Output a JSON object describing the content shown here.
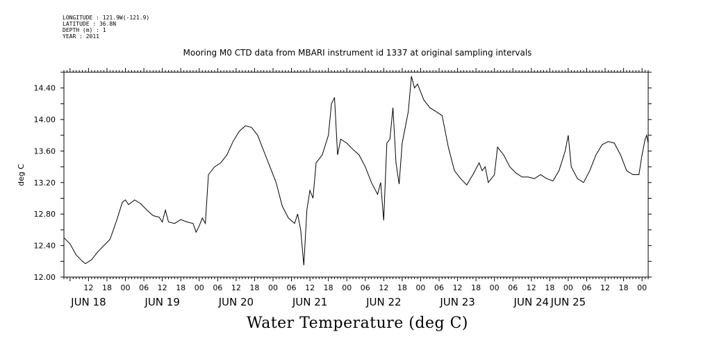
{
  "meta": {
    "longitude": "LONGITUDE : 121.9W(-121.9)",
    "latitude": "LATITUDE : 36.8N",
    "depth": "DEPTH (m) : 1",
    "year": "YEAR : 2011"
  },
  "chart_data": {
    "type": "line",
    "title": "Mooring M0 CTD data from MBARI instrument id 1337 at original sampling intervals",
    "xlabel": "Water Temperature (deg C)",
    "ylabel": "deg C",
    "ylim": [
      12.0,
      14.6
    ],
    "yticks": [
      12.0,
      12.4,
      12.8,
      13.2,
      13.6,
      14.0,
      14.4
    ],
    "ytick_labels": [
      "12.00",
      "12.40",
      "12.80",
      "13.20",
      "13.60",
      "14.00",
      "14.40"
    ],
    "xlim": [
      "2011-06-17T04:00",
      "2011-06-25T02:00"
    ],
    "hour_ticks": [
      {
        "t": "2011-06-17T12:00",
        "label": "12"
      },
      {
        "t": "2011-06-17T18:00",
        "label": "18"
      },
      {
        "t": "2011-06-18T00:00",
        "label": "00"
      },
      {
        "t": "2011-06-18T06:00",
        "label": "06"
      },
      {
        "t": "2011-06-18T12:00",
        "label": "12"
      },
      {
        "t": "2011-06-18T18:00",
        "label": "18"
      },
      {
        "t": "2011-06-19T00:00",
        "label": "00"
      },
      {
        "t": "2011-06-19T06:00",
        "label": "06"
      },
      {
        "t": "2011-06-19T12:00",
        "label": "12"
      },
      {
        "t": "2011-06-19T18:00",
        "label": "18"
      },
      {
        "t": "2011-06-20T00:00",
        "label": "00"
      },
      {
        "t": "2011-06-20T06:00",
        "label": "06"
      },
      {
        "t": "2011-06-20T12:00",
        "label": "12"
      },
      {
        "t": "2011-06-20T18:00",
        "label": "18"
      },
      {
        "t": "2011-06-21T00:00",
        "label": "00"
      },
      {
        "t": "2011-06-21T06:00",
        "label": "06"
      },
      {
        "t": "2011-06-21T12:00",
        "label": "12"
      },
      {
        "t": "2011-06-21T18:00",
        "label": "18"
      },
      {
        "t": "2011-06-22T00:00",
        "label": "00"
      },
      {
        "t": "2011-06-22T06:00",
        "label": "06"
      },
      {
        "t": "2011-06-22T12:00",
        "label": "12"
      },
      {
        "t": "2011-06-22T18:00",
        "label": "18"
      },
      {
        "t": "2011-06-23T00:00",
        "label": "00"
      },
      {
        "t": "2011-06-23T06:00",
        "label": "06"
      },
      {
        "t": "2011-06-23T12:00",
        "label": "12"
      },
      {
        "t": "2011-06-23T18:00",
        "label": "18"
      },
      {
        "t": "2011-06-24T00:00",
        "label": "00"
      },
      {
        "t": "2011-06-24T06:00",
        "label": "06"
      },
      {
        "t": "2011-06-24T12:00",
        "label": "12"
      },
      {
        "t": "2011-06-24T18:00",
        "label": "18"
      },
      {
        "t": "2011-06-25T00:00",
        "label": "00"
      }
    ],
    "date_labels": [
      {
        "t": "2011-06-17T12:00",
        "label": "JUN 18"
      },
      {
        "t": "2011-06-18T12:00",
        "label": "JUN 19"
      },
      {
        "t": "2011-06-19T12:00",
        "label": "JUN 20"
      },
      {
        "t": "2011-06-20T12:00",
        "label": "JUN 21"
      },
      {
        "t": "2011-06-21T12:00",
        "label": "JUN 22"
      },
      {
        "t": "2011-06-22T12:00",
        "label": "JUN 23"
      },
      {
        "t": "2011-06-23T12:00",
        "label": "JUN 24"
      },
      {
        "t": "2011-06-24T00:00",
        "label": "JUN 25"
      }
    ],
    "series": [
      {
        "points": [
          [
            "2011-06-17T04:00",
            12.5
          ],
          [
            "2011-06-17T06:00",
            12.42
          ],
          [
            "2011-06-17T08:00",
            12.28
          ],
          [
            "2011-06-17T10:00",
            12.2
          ],
          [
            "2011-06-17T11:00",
            12.17
          ],
          [
            "2011-06-17T13:00",
            12.22
          ],
          [
            "2011-06-17T15:00",
            12.32
          ],
          [
            "2011-06-17T17:00",
            12.4
          ],
          [
            "2011-06-17T19:00",
            12.48
          ],
          [
            "2011-06-17T21:00",
            12.7
          ],
          [
            "2011-06-17T23:00",
            12.95
          ],
          [
            "2011-06-18T00:00",
            12.98
          ],
          [
            "2011-06-18T01:00",
            12.92
          ],
          [
            "2011-06-18T03:00",
            12.98
          ],
          [
            "2011-06-18T05:00",
            12.93
          ],
          [
            "2011-06-18T07:00",
            12.85
          ],
          [
            "2011-06-18T09:00",
            12.78
          ],
          [
            "2011-06-18T11:00",
            12.76
          ],
          [
            "2011-06-18T12:00",
            12.7
          ],
          [
            "2011-06-18T13:00",
            12.85
          ],
          [
            "2011-06-18T14:00",
            12.7
          ],
          [
            "2011-06-18T16:00",
            12.68
          ],
          [
            "2011-06-18T18:00",
            12.73
          ],
          [
            "2011-06-18T20:00",
            12.7
          ],
          [
            "2011-06-18T22:00",
            12.68
          ],
          [
            "2011-06-18T23:00",
            12.57
          ],
          [
            "2011-06-19T00:00",
            12.65
          ],
          [
            "2011-06-19T01:00",
            12.75
          ],
          [
            "2011-06-19T02:00",
            12.68
          ],
          [
            "2011-06-19T03:00",
            13.3
          ],
          [
            "2011-06-19T05:00",
            13.4
          ],
          [
            "2011-06-19T07:00",
            13.45
          ],
          [
            "2011-06-19T09:00",
            13.55
          ],
          [
            "2011-06-19T11:00",
            13.72
          ],
          [
            "2011-06-19T13:00",
            13.85
          ],
          [
            "2011-06-19T15:00",
            13.92
          ],
          [
            "2011-06-19T17:00",
            13.9
          ],
          [
            "2011-06-19T19:00",
            13.8
          ],
          [
            "2011-06-19T21:00",
            13.6
          ],
          [
            "2011-06-19T23:00",
            13.4
          ],
          [
            "2011-06-20T01:00",
            13.2
          ],
          [
            "2011-06-20T03:00",
            12.9
          ],
          [
            "2011-06-20T05:00",
            12.75
          ],
          [
            "2011-06-20T07:00",
            12.68
          ],
          [
            "2011-06-20T08:00",
            12.8
          ],
          [
            "2011-06-20T09:00",
            12.6
          ],
          [
            "2011-06-20T10:00",
            12.15
          ],
          [
            "2011-06-20T11:00",
            12.85
          ],
          [
            "2011-06-20T12:00",
            13.1
          ],
          [
            "2011-06-20T13:00",
            13.0
          ],
          [
            "2011-06-20T14:00",
            13.45
          ],
          [
            "2011-06-20T16:00",
            13.55
          ],
          [
            "2011-06-20T18:00",
            13.8
          ],
          [
            "2011-06-20T19:00",
            14.2
          ],
          [
            "2011-06-20T20:00",
            14.28
          ],
          [
            "2011-06-20T21:00",
            13.55
          ],
          [
            "2011-06-20T22:00",
            13.75
          ],
          [
            "2011-06-21T00:00",
            13.7
          ],
          [
            "2011-06-21T02:00",
            13.62
          ],
          [
            "2011-06-21T04:00",
            13.55
          ],
          [
            "2011-06-21T06:00",
            13.4
          ],
          [
            "2011-06-21T08:00",
            13.2
          ],
          [
            "2011-06-21T10:00",
            13.05
          ],
          [
            "2011-06-21T11:00",
            13.2
          ],
          [
            "2011-06-21T12:00",
            12.72
          ],
          [
            "2011-06-21T13:00",
            13.7
          ],
          [
            "2011-06-21T14:00",
            13.75
          ],
          [
            "2011-06-21T15:00",
            14.15
          ],
          [
            "2011-06-21T16:00",
            13.45
          ],
          [
            "2011-06-21T17:00",
            13.18
          ],
          [
            "2011-06-21T18:00",
            13.7
          ],
          [
            "2011-06-21T20:00",
            14.1
          ],
          [
            "2011-06-21T21:00",
            14.55
          ],
          [
            "2011-06-21T22:00",
            14.4
          ],
          [
            "2011-06-21T23:00",
            14.45
          ],
          [
            "2011-06-22T01:00",
            14.25
          ],
          [
            "2011-06-22T03:00",
            14.15
          ],
          [
            "2011-06-22T05:00",
            14.1
          ],
          [
            "2011-06-22T07:00",
            14.05
          ],
          [
            "2011-06-22T09:00",
            13.65
          ],
          [
            "2011-06-22T11:00",
            13.35
          ],
          [
            "2011-06-22T13:00",
            13.25
          ],
          [
            "2011-06-22T15:00",
            13.17
          ],
          [
            "2011-06-22T17:00",
            13.3
          ],
          [
            "2011-06-22T19:00",
            13.45
          ],
          [
            "2011-06-22T20:00",
            13.35
          ],
          [
            "2011-06-22T21:00",
            13.4
          ],
          [
            "2011-06-22T22:00",
            13.2
          ],
          [
            "2011-06-23T00:00",
            13.3
          ],
          [
            "2011-06-23T01:00",
            13.65
          ],
          [
            "2011-06-23T03:00",
            13.55
          ],
          [
            "2011-06-23T05:00",
            13.4
          ],
          [
            "2011-06-23T07:00",
            13.32
          ],
          [
            "2011-06-23T09:00",
            13.27
          ],
          [
            "2011-06-23T11:00",
            13.27
          ],
          [
            "2011-06-23T13:00",
            13.25
          ],
          [
            "2011-06-23T15:00",
            13.3
          ],
          [
            "2011-06-23T17:00",
            13.25
          ],
          [
            "2011-06-23T19:00",
            13.22
          ],
          [
            "2011-06-23T21:00",
            13.35
          ],
          [
            "2011-06-23T23:00",
            13.6
          ],
          [
            "2011-06-24T00:00",
            13.8
          ],
          [
            "2011-06-24T01:00",
            13.4
          ],
          [
            "2011-06-24T03:00",
            13.25
          ],
          [
            "2011-06-24T05:00",
            13.2
          ],
          [
            "2011-06-24T07:00",
            13.35
          ],
          [
            "2011-06-24T09:00",
            13.55
          ],
          [
            "2011-06-24T11:00",
            13.68
          ],
          [
            "2011-06-24T13:00",
            13.72
          ],
          [
            "2011-06-24T15:00",
            13.7
          ],
          [
            "2011-06-24T17:00",
            13.55
          ],
          [
            "2011-06-24T19:00",
            13.35
          ],
          [
            "2011-06-24T21:00",
            13.3
          ],
          [
            "2011-06-24T23:00",
            13.3
          ],
          [
            "2011-06-25T00:00",
            13.55
          ],
          [
            "2011-06-25T01:00",
            13.75
          ],
          [
            "2011-06-25T01:30",
            13.8
          ],
          [
            "2011-06-25T02:00",
            13.7
          ]
        ]
      }
    ]
  }
}
